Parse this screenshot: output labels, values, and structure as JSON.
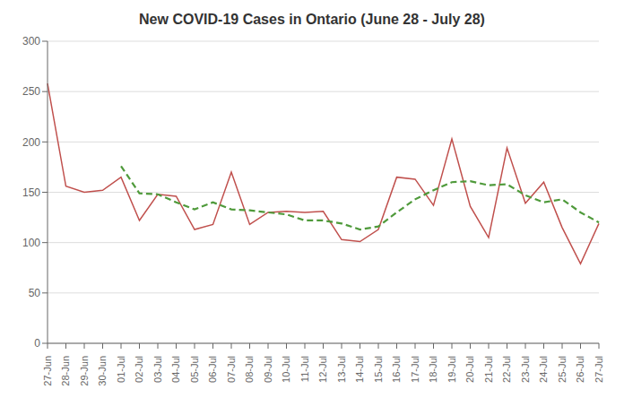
{
  "chart_data": {
    "type": "line",
    "title": "New COVID-19 Cases in Ontario (June 28 - July 28)",
    "categories": [
      "27-Jun",
      "28-Jun",
      "29-Jun",
      "30-Jun",
      "01-Jul",
      "02-Jul",
      "03-Jul",
      "04-Jul",
      "05-Jul",
      "06-Jul",
      "07-Jul",
      "08-Jul",
      "09-Jul",
      "10-Jul",
      "11-Jul",
      "12-Jul",
      "13-Jul",
      "14-Jul",
      "15-Jul",
      "16-Jul",
      "17-Jul",
      "18-Jul",
      "19-Jul",
      "20-Jul",
      "21-Jul",
      "22-Jul",
      "23-Jul",
      "24-Jul",
      "25-Jul",
      "26-Jul",
      "27-Jul"
    ],
    "series": [
      {
        "color": "#c0504d",
        "line_style": "solid",
        "values": [
          258,
          156,
          150,
          152,
          165,
          122,
          148,
          146,
          113,
          118,
          170,
          118,
          130,
          131,
          130,
          131,
          103,
          101,
          113,
          165,
          163,
          137,
          203,
          136,
          105,
          194,
          139,
          160,
          115,
          79,
          119
        ]
      },
      {
        "color": "#4f9a3b",
        "line_style": "dashed",
        "values": [
          null,
          null,
          null,
          null,
          176,
          149,
          148,
          140,
          133,
          140,
          133,
          132,
          130,
          128,
          122,
          122,
          119,
          113,
          116,
          130,
          143,
          152,
          160,
          161,
          157,
          158,
          147,
          140,
          143,
          130,
          120
        ]
      }
    ],
    "ylim": [
      0,
      300
    ],
    "yticks": [
      0,
      50,
      100,
      150,
      200,
      250,
      300
    ],
    "grid": true
  }
}
